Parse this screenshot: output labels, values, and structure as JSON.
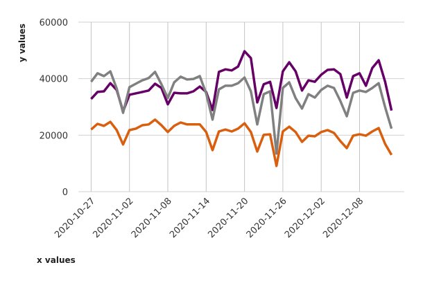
{
  "chart_data": {
    "type": "line",
    "x_label": "x values",
    "y_label": "y values",
    "x": [
      "2020-10-27",
      "2020-10-28",
      "2020-10-29",
      "2020-10-30",
      "2020-10-31",
      "2020-11-01",
      "2020-11-02",
      "2020-11-03",
      "2020-11-04",
      "2020-11-05",
      "2020-11-06",
      "2020-11-07",
      "2020-11-08",
      "2020-11-09",
      "2020-11-10",
      "2020-11-11",
      "2020-11-12",
      "2020-11-13",
      "2020-11-14",
      "2020-11-15",
      "2020-11-16",
      "2020-11-17",
      "2020-11-18",
      "2020-11-19",
      "2020-11-20",
      "2020-11-21",
      "2020-11-22",
      "2020-11-23",
      "2020-11-24",
      "2020-11-25",
      "2020-11-26",
      "2020-11-27",
      "2020-11-28",
      "2020-11-29",
      "2020-11-30",
      "2020-12-01",
      "2020-12-02",
      "2020-12-03",
      "2020-12-04",
      "2020-12-05",
      "2020-12-06",
      "2020-12-07",
      "2020-12-08",
      "2020-12-09",
      "2020-12-10",
      "2020-12-11",
      "2020-12-12",
      "2020-12-13"
    ],
    "series": [
      {
        "color": "#660066",
        "values": [
          32800,
          35300,
          35500,
          38400,
          36000,
          28400,
          34300,
          34800,
          35300,
          35800,
          38200,
          36700,
          30900,
          35000,
          34800,
          34800,
          35500,
          37200,
          35300,
          28900,
          42400,
          43300,
          42900,
          44300,
          49700,
          47300,
          31600,
          38000,
          38900,
          29600,
          42600,
          45800,
          42600,
          35800,
          39400,
          38900,
          41400,
          43100,
          43300,
          41600,
          33300,
          40900,
          41900,
          37500,
          43800,
          46500,
          38900,
          28700
        ]
      },
      {
        "color": "#808080",
        "values": [
          38900,
          41900,
          40900,
          42600,
          36500,
          27900,
          37000,
          38200,
          39400,
          40200,
          42400,
          38000,
          33100,
          38700,
          40700,
          39700,
          39900,
          40900,
          34800,
          25500,
          36200,
          37500,
          37500,
          38400,
          40400,
          35500,
          23800,
          34500,
          35500,
          13500,
          36700,
          38700,
          33100,
          29400,
          34500,
          33300,
          36000,
          37500,
          36700,
          32100,
          26700,
          35000,
          35800,
          35300,
          36700,
          38400,
          29900,
          22300
        ]
      },
      {
        "color": "#d95f0e",
        "values": [
          22000,
          24000,
          23300,
          24700,
          21800,
          16700,
          21800,
          22300,
          23500,
          23800,
          25500,
          23500,
          21100,
          23300,
          24500,
          23800,
          23800,
          23800,
          21100,
          14700,
          21300,
          22000,
          21300,
          22300,
          24200,
          21100,
          14200,
          20100,
          20300,
          9100,
          21300,
          23000,
          21100,
          17600,
          19800,
          19600,
          21100,
          21800,
          20800,
          17900,
          15400,
          19800,
          20300,
          19800,
          21300,
          22500,
          16900,
          13000
        ]
      }
    ],
    "xlim": [
      "2020-10-25",
      "2020-12-15"
    ],
    "xticks": [
      "2020-10-27",
      "2020-11-02",
      "2020-11-08",
      "2020-11-14",
      "2020-11-20",
      "2020-11-26",
      "2020-12-02",
      "2020-12-08"
    ],
    "ylim": [
      0,
      60000
    ],
    "yticks": [
      0,
      20000,
      40000,
      60000
    ],
    "grid": true
  }
}
